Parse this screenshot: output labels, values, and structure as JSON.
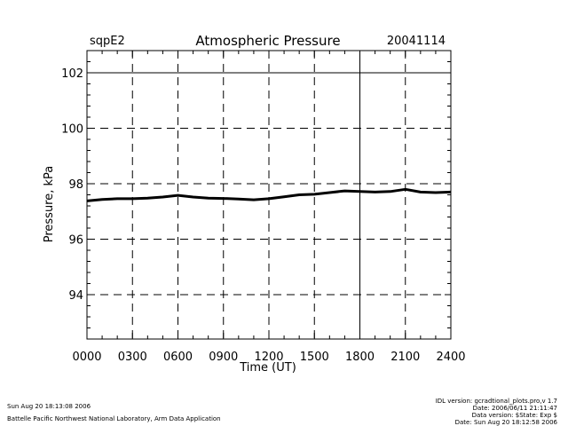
{
  "header": {
    "site": "sqpE2",
    "title": "Atmospheric Pressure",
    "date": "20041114"
  },
  "chart_data": {
    "type": "line",
    "title": "Atmospheric Pressure",
    "xlabel": "Time (UT)",
    "ylabel": "Pressure, kPa",
    "xlim": [
      0,
      2400
    ],
    "ylim": [
      92.4,
      102.8
    ],
    "x_ticks": [
      "0000",
      "0300",
      "0600",
      "0900",
      "1200",
      "1500",
      "1800",
      "2100",
      "2400"
    ],
    "x_tick_values": [
      0,
      300,
      600,
      900,
      1200,
      1500,
      1800,
      2100,
      2400
    ],
    "y_ticks": [
      "94",
      "96",
      "98",
      "100",
      "102"
    ],
    "y_tick_values": [
      94,
      96,
      98,
      100,
      102
    ],
    "grid": true,
    "series": [
      {
        "x": [
          0,
          100,
          200,
          300,
          400,
          500,
          600,
          700,
          800,
          900,
          1000,
          1100,
          1200,
          1300,
          1400,
          1500,
          1600,
          1700,
          1800,
          1900,
          2000,
          2100,
          2200,
          2300,
          2400
        ],
        "y": [
          97.38,
          97.43,
          97.46,
          97.46,
          97.48,
          97.52,
          97.58,
          97.52,
          97.48,
          97.47,
          97.45,
          97.42,
          97.46,
          97.53,
          97.6,
          97.62,
          97.68,
          97.74,
          97.72,
          97.7,
          97.72,
          97.8,
          97.7,
          97.68,
          97.7
        ]
      }
    ]
  },
  "footer": {
    "run_date": "Sun Aug 20 18:13:08 2006",
    "lab": "Battelle Pacific Northwest National Laboratory, Arm Data Application",
    "idl_version": "IDL version: gcradtional_plots.pro,v 1.7",
    "date_line": "Date: 2006/06/11 21:11:47",
    "data_version": "Data version: $State: Exp $",
    "data_date": "Date: Sun Aug 20 18:12:58 2006"
  }
}
